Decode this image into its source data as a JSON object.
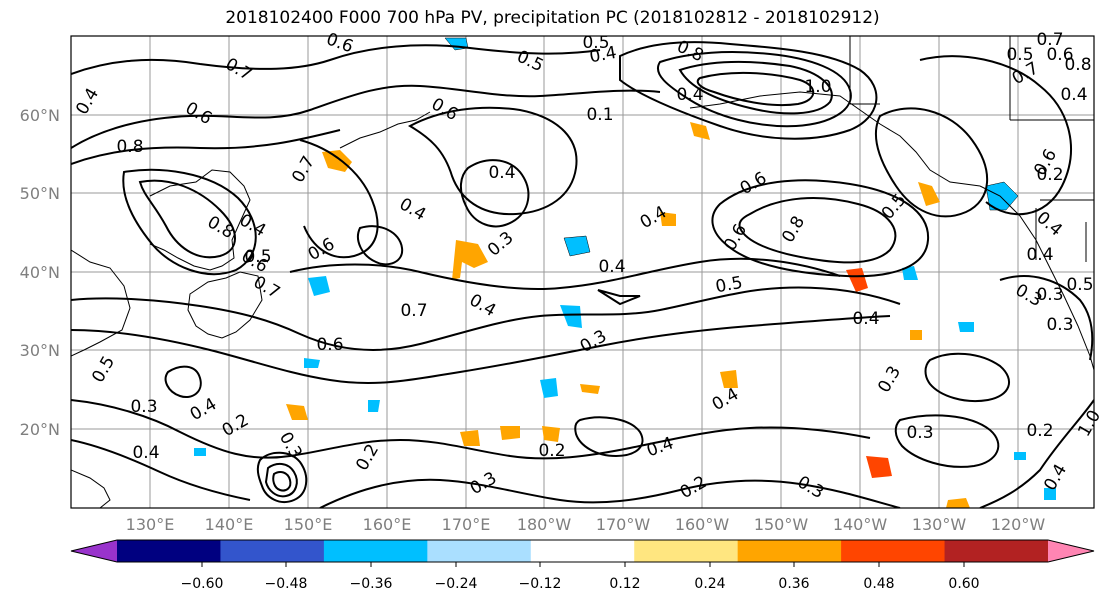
{
  "title": "2018102400 F000 700 hPa PV, precipitation PC (2018102812 - 2018102912)",
  "lat_labels": [
    "60°N",
    "50°N",
    "40°N",
    "30°N",
    "20°N"
  ],
  "lon_labels": [
    "130°E",
    "140°E",
    "150°E",
    "160°E",
    "170°E",
    "180°W",
    "170°W",
    "160°W",
    "150°W",
    "140°W",
    "130°W",
    "120°W"
  ],
  "colorbar": {
    "colors": [
      "#9933cc",
      "#000080",
      "#3355cc",
      "#00bfff",
      "#aadfff",
      "#ffffff",
      "#ffe680",
      "#ffa500",
      "#ff4500",
      "#b22222",
      "#ff85b3"
    ],
    "tick_labels": [
      "−0.60",
      "−0.48",
      "−0.36",
      "−0.24",
      "−0.12",
      "0.12",
      "0.24",
      "0.36",
      "0.48",
      "0.60"
    ]
  },
  "contour_labels": [
    "0.6",
    "0.5",
    "0.4",
    "0.8",
    "0.4",
    "0.7",
    "1.0",
    "0.6",
    "0.8",
    "0.6",
    "0.7",
    "0.8",
    "0.4",
    "0.5",
    "0.6",
    "0.4",
    "0.4",
    "0.3",
    "0.4",
    "0.5",
    "0.7",
    "0.4",
    "0.6",
    "0.8",
    "0.5",
    "0.6",
    "0.4",
    "0.7",
    "0.6",
    "0.5",
    "0.4",
    "0.6",
    "0.6",
    "0.4",
    "0.3",
    "0.3",
    "0.5",
    "0.3",
    "0.4",
    "0.2",
    "0.3",
    "0.2",
    "0.4",
    "0.2",
    "0.3",
    "0.4",
    "0.2",
    "0.3",
    "0.4",
    "0.4",
    "0.2",
    "0.3",
    "0.3",
    "0.3",
    "0.3",
    "0.4",
    "0.2",
    "1.0",
    "0.7",
    "0.8",
    "0.5",
    "0.7",
    "0.6",
    "0.4",
    "0.1",
    "0.5",
    "0.4"
  ]
}
